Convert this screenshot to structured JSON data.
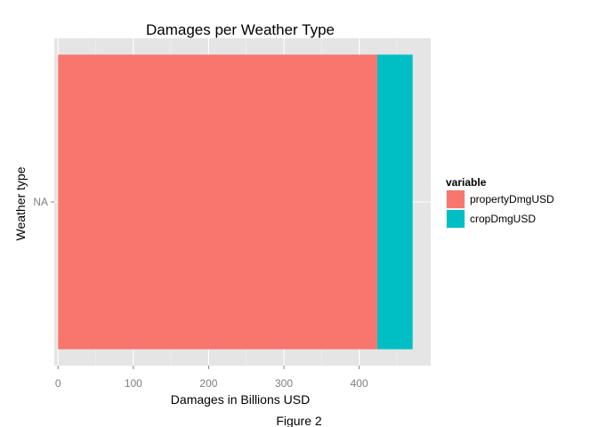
{
  "chart_data": {
    "type": "bar",
    "orientation": "horizontal",
    "stacked": true,
    "title": "Damages per Weather Type",
    "xlabel": "Damages in Billions USD",
    "ylabel": "Weather type",
    "categories": [
      "NA"
    ],
    "series": [
      {
        "name": "propertyDmgUSD",
        "values": [
          424
        ],
        "color": "#F8766D"
      },
      {
        "name": "cropDmgUSD",
        "values": [
          47
        ],
        "color": "#00BFC4"
      }
    ],
    "xlim": [
      -5,
      495
    ],
    "xticks": [
      0,
      100,
      200,
      300,
      400
    ],
    "legend": {
      "title": "variable",
      "position": "right"
    },
    "grid": true,
    "panel_background": "#E5E5E5",
    "grid_major_color": "#FFFFFF",
    "grid_minor_color": "#F2F2F2"
  },
  "caption": "Figure 2"
}
